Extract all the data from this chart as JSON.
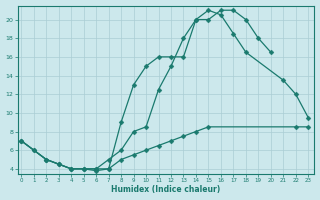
{
  "xlabel": "Humidex (Indice chaleur)",
  "bg_color": "#cce8ec",
  "grid_color": "#aacdd4",
  "line_color": "#1a7a6e",
  "curves": [
    {
      "x": [
        0,
        1,
        2,
        3,
        4,
        5,
        6,
        7,
        8,
        9,
        10,
        11,
        12,
        13,
        14,
        15,
        16,
        17,
        18,
        19,
        20
      ],
      "y": [
        7,
        6,
        5,
        4.5,
        4,
        4,
        3.8,
        4,
        9,
        13,
        15,
        16,
        16,
        16,
        20,
        20,
        21,
        21,
        20,
        18,
        16.5
      ]
    },
    {
      "x": [
        0,
        1,
        2,
        3,
        4,
        5,
        6,
        7,
        8,
        9,
        10,
        11,
        12,
        13,
        14,
        15,
        16,
        17,
        18,
        21,
        22,
        23
      ],
      "y": [
        7,
        6,
        5,
        4.5,
        4,
        4,
        4,
        5,
        6,
        8,
        8.5,
        12.5,
        15,
        18,
        20,
        21,
        20.5,
        18.5,
        16.5,
        13.5,
        12,
        9.5
      ]
    },
    {
      "x": [
        0,
        2,
        3,
        4,
        5,
        6,
        7,
        8,
        9,
        10,
        11,
        12,
        13,
        14,
        15,
        22,
        23
      ],
      "y": [
        7,
        5,
        4.5,
        4,
        4,
        4,
        4,
        5,
        5.5,
        6,
        6.5,
        7,
        7.5,
        8,
        8.5,
        8.5,
        8.5
      ]
    }
  ],
  "xlim": [
    -0.3,
    23.5
  ],
  "ylim": [
    3.5,
    21.5
  ],
  "yticks": [
    4,
    6,
    8,
    10,
    12,
    14,
    16,
    18,
    20
  ],
  "xticks": [
    0,
    1,
    2,
    3,
    4,
    5,
    6,
    7,
    8,
    9,
    10,
    11,
    12,
    13,
    14,
    15,
    16,
    17,
    18,
    19,
    20,
    21,
    22,
    23
  ]
}
